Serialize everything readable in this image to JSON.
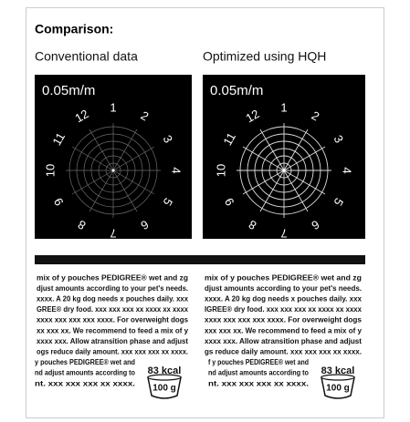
{
  "title": "Comparison:",
  "panels": [
    {
      "label": "Conventional data",
      "scale": "0.05m/m",
      "dial_labels": [
        "1",
        "2",
        "3",
        "4",
        "5",
        "6",
        "7",
        "8",
        "9",
        "10",
        "11",
        "12"
      ],
      "text_lines": [
        "mix of y pouches PEDIGREE® wet and zg",
        "djust amounts according to your pet's needs.",
        "xxxx. A 20 kg dog needs x pouches daily. xxx",
        "GREE® dry food. xxx xxx xxx xx xxxx xx xxxx",
        "xxxx xxx xxx xxx xxxx. For overweight dogs",
        "xx xxx xx. We recommend to feed a mix of y",
        "xxxx xxx. Allow atransition phase and adjust",
        "ogs reduce daily amount. xxx xxx xxx xx xxxx.",
        "y pouches PEDIGREE® wet and",
        "nd adjust amounts according to",
        "nt. xxx xxx xxx xx xxxx."
      ],
      "kcal": "83 kcal",
      "weight": "100 g"
    },
    {
      "label": "Optimized using HQH",
      "scale": "0.05m/m",
      "dial_labels": [
        "1",
        "2",
        "3",
        "4",
        "5",
        "6",
        "7",
        "8",
        "9",
        "10",
        "11",
        "12"
      ],
      "text_lines": [
        "mix of y pouches PEDIGREE® wet and zg",
        "djust amounts according to your pet's needs.",
        "xxxx. A 20 kg dog needs x pouches daily. xxx",
        "IGREE® dry food. xxx xxx xxx xx xxxx xx xxxx",
        "xxxx xxx xxx xxx xxxx. For overweight dogs",
        "xxx xxx xx. We recommend to feed a mix of y",
        "xxxx xxx. Allow atransition phase and adjust",
        "gs reduce daily amount. xxx xxx xxx xx xxxx.",
        "f y pouches PEDIGREE® wet and",
        "nd adjust amounts according to",
        "nt. xxx xxx xxx xx xxxx."
      ],
      "kcal": "83 kcal",
      "weight": "100 g"
    }
  ]
}
